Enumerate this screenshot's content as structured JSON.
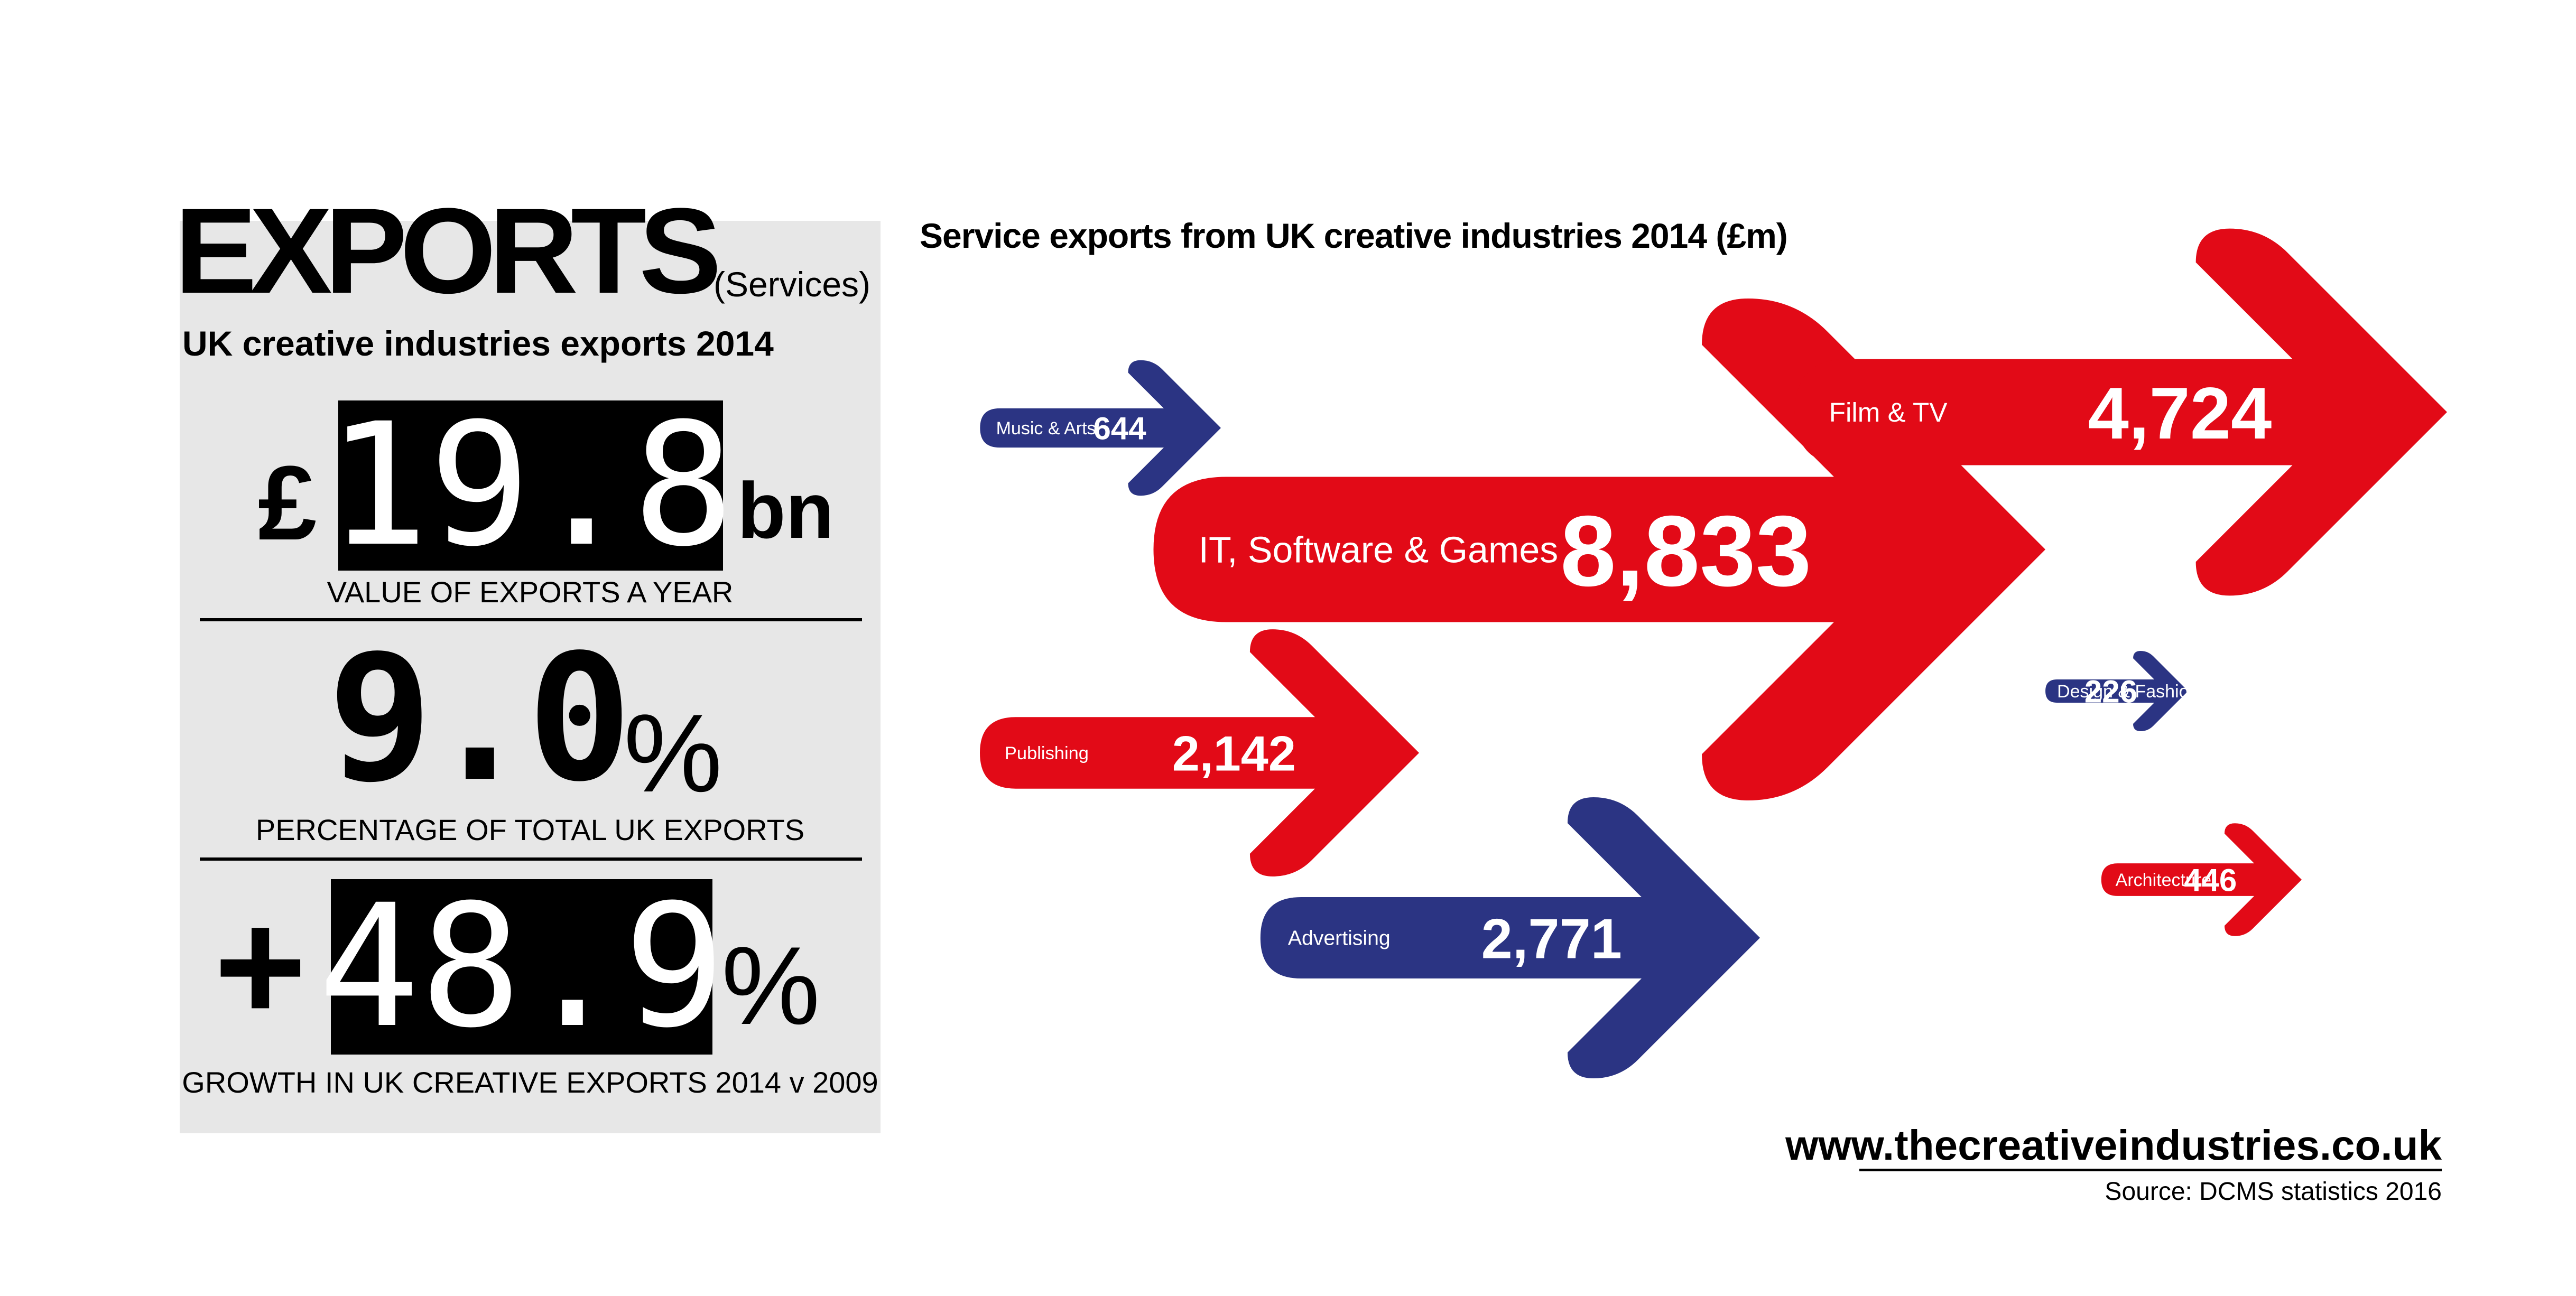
{
  "panel": {
    "title": "EXPORTS",
    "title_suffix": "(Services)",
    "heading": "UK creative industries exports 2014",
    "stats": [
      {
        "prefix": "£",
        "value": "19.8",
        "suffix": "bn",
        "caption": "VALUE OF EXPORTS A YEAR"
      },
      {
        "prefix": "",
        "value": "9.0",
        "suffix": "%",
        "caption": "PERCENTAGE OF TOTAL UK EXPORTS"
      },
      {
        "prefix": "+",
        "value": "48.9",
        "suffix": "%",
        "caption": "GROWTH IN UK CREATIVE EXPORTS 2014 v 2009"
      }
    ]
  },
  "chart_data": {
    "type": "bar",
    "title": "Service exports from UK creative industries 2014 (£m)",
    "categories": [
      "IT, Software & Games",
      "Film & TV",
      "Advertising",
      "Publishing",
      "Music & Arts",
      "Architecture",
      "Design & Fashion"
    ],
    "values": [
      8833,
      4724,
      2771,
      2142,
      644,
      446,
      226
    ],
    "value_labels": [
      "8,833",
      "4,724",
      "2,771",
      "2,142",
      "644",
      "446",
      "226"
    ],
    "colors": [
      "#e20a17",
      "#e20a17",
      "#2b3483",
      "#e20a17",
      "#2b3483",
      "#e20a17",
      "#2b3483"
    ]
  },
  "footer": {
    "url": "www.thecreativeindustries.co.uk",
    "source": "Source: DCMS statistics 2016"
  }
}
